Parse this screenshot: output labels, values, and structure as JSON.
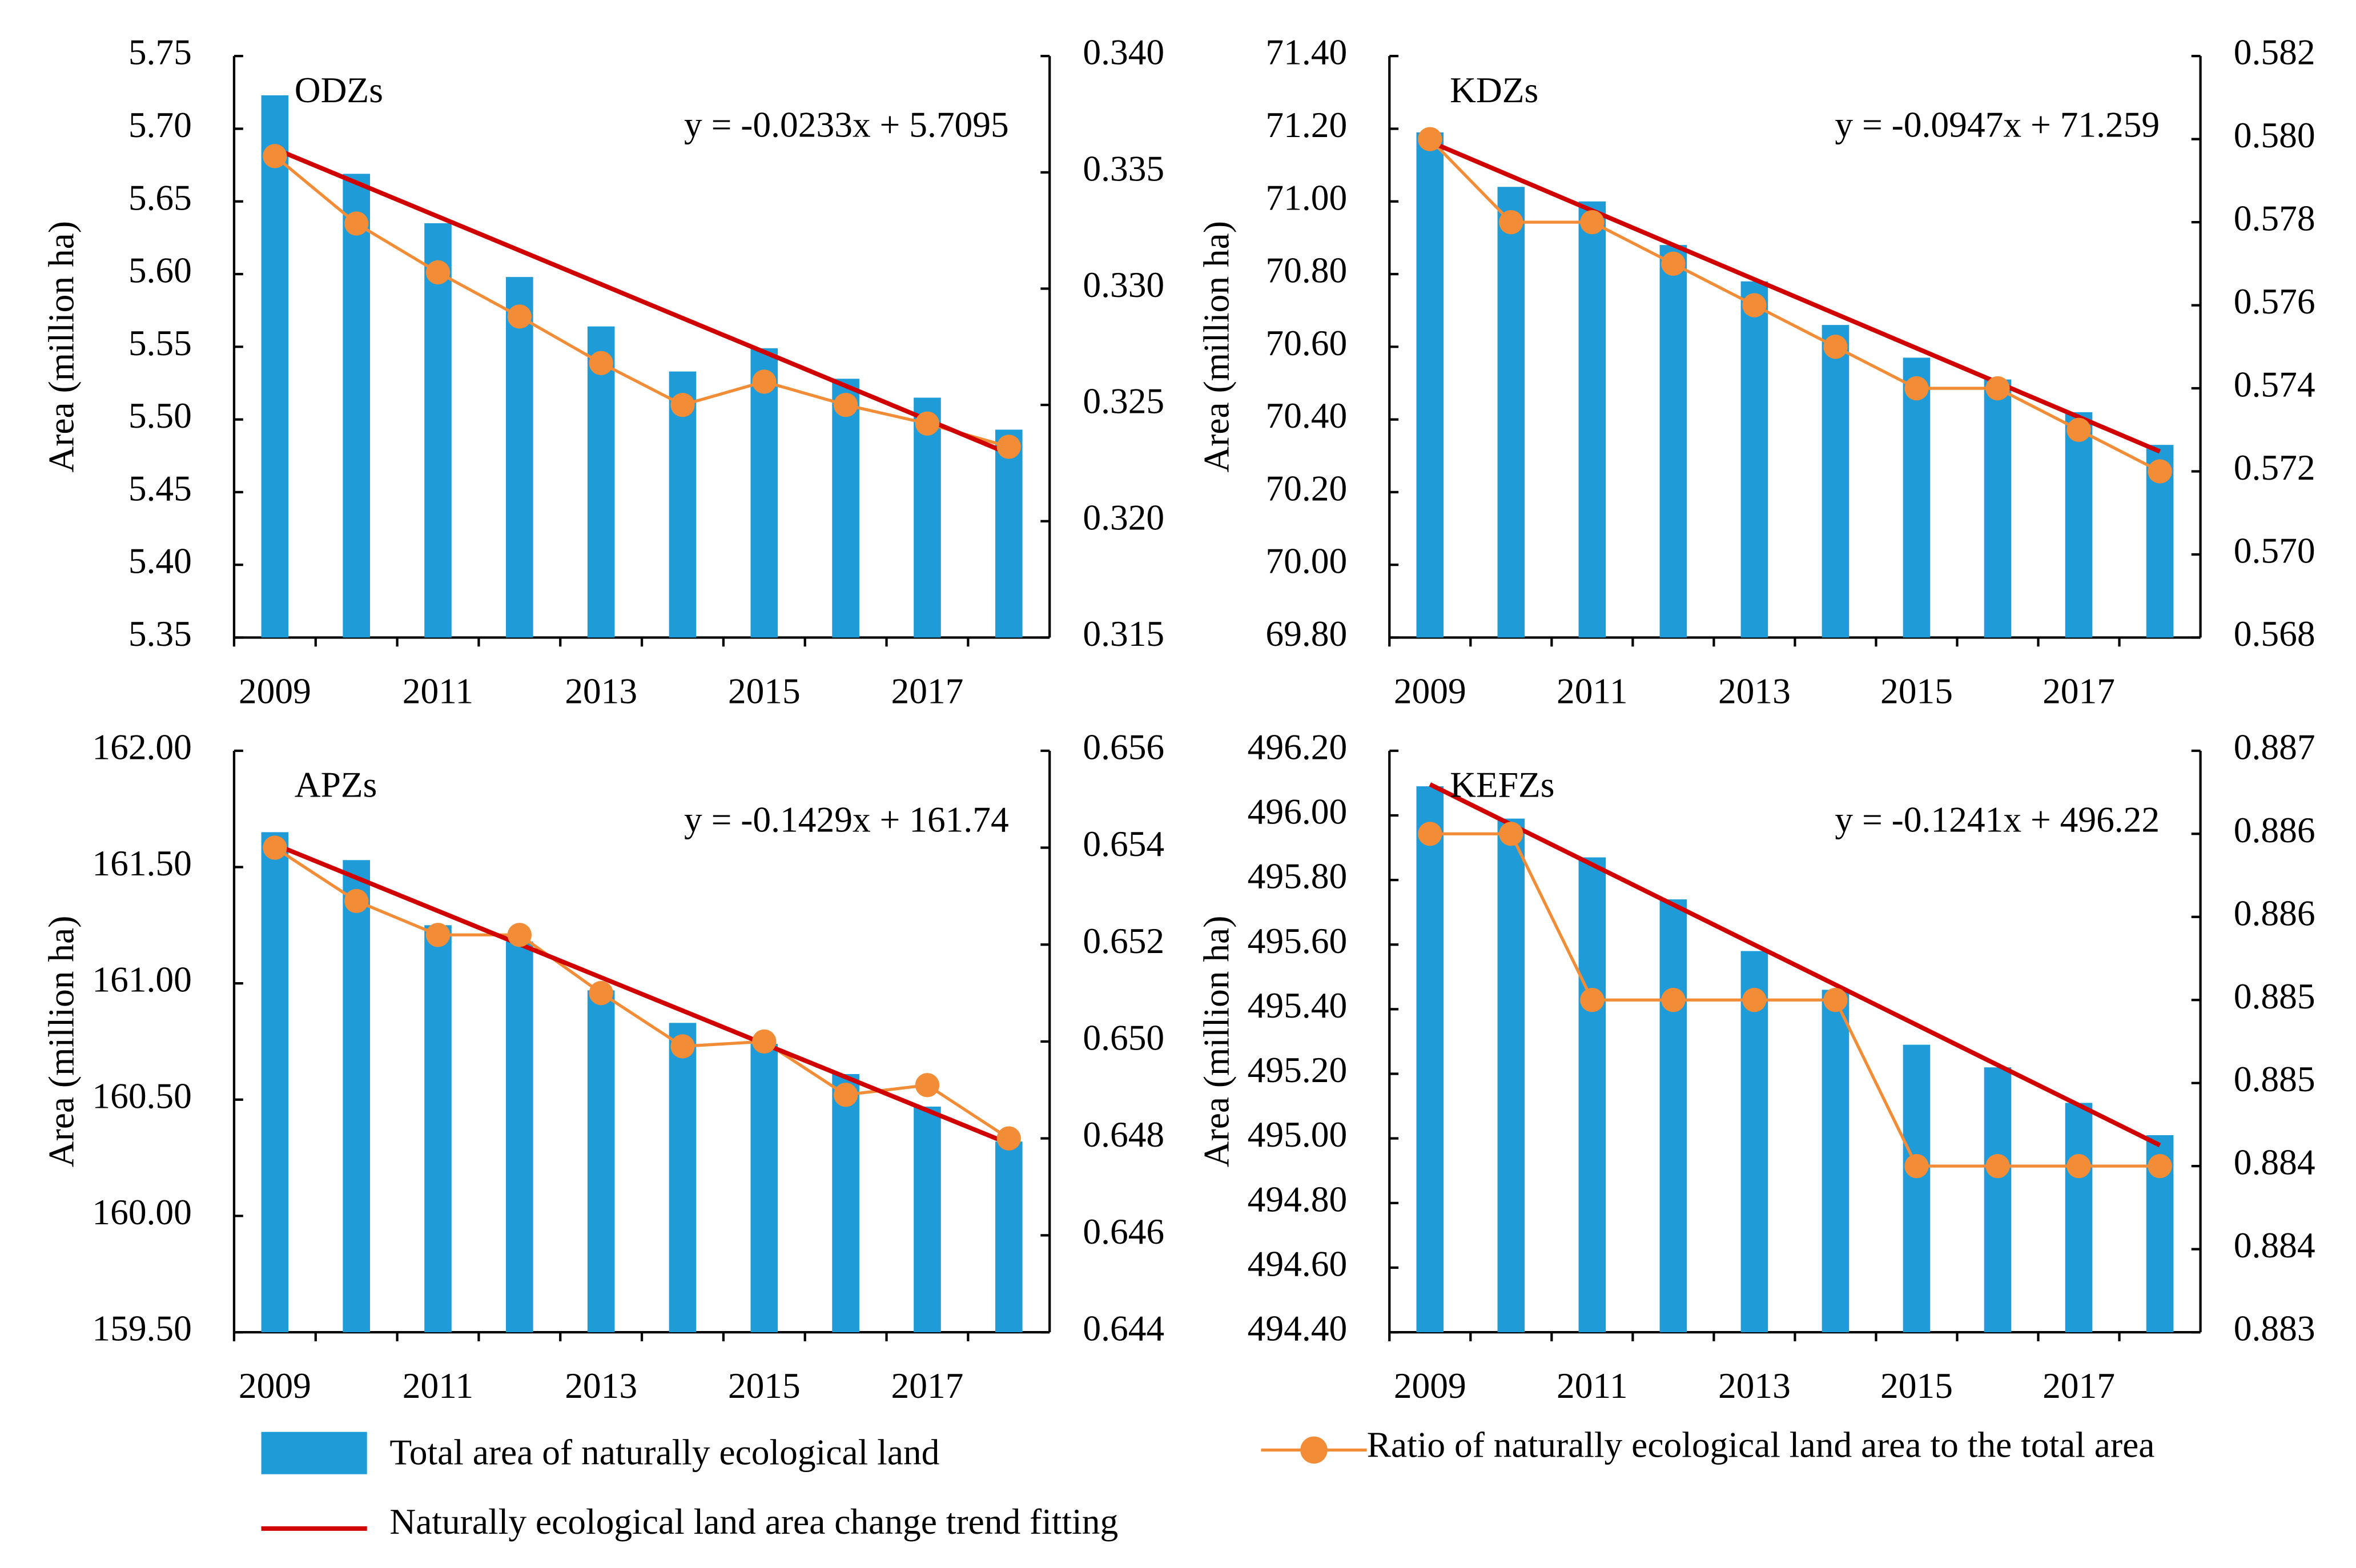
{
  "chart_data": [
    {
      "type": "bar-line",
      "title": "ODZs",
      "annotation": "y = -0.0233x + 5.7095",
      "y_label": "Area (million ha)",
      "categories": [
        "2009",
        null,
        "2011",
        null,
        "2013",
        null,
        "2015",
        null,
        "2017",
        null
      ],
      "bars": {
        "color": "#1f9bd7",
        "values": [
          5.723,
          5.669,
          5.635,
          5.598,
          5.564,
          5.533,
          5.549,
          5.528,
          5.515,
          5.493
        ]
      },
      "ratio": {
        "color": "#f28c36",
        "axis": "y2",
        "values": [
          0.3357,
          0.3328,
          0.3307,
          0.3288,
          0.3268,
          0.325,
          0.326,
          0.325,
          0.3242,
          0.3232
        ]
      },
      "trend": {
        "color": "#d00000",
        "values": [
          5.6862,
          5.6629,
          5.6396,
          5.6163,
          5.593,
          5.5697,
          5.5464,
          5.5231,
          5.4998,
          5.4765
        ]
      },
      "ylim": [
        5.35,
        5.75
      ],
      "yticks": [
        5.35,
        {
          "value": 5.4,
          "label": "5.40"
        },
        5.45,
        {
          "value": 5.5,
          "label": "5.50"
        },
        5.55,
        {
          "value": 5.6,
          "label": "5.60"
        },
        5.65,
        {
          "value": 5.7,
          "label": "5.70"
        },
        5.75
      ],
      "y2lim": [
        0.315,
        0.34
      ],
      "y2ticks": [
        0.315,
        {
          "value": 0.32,
          "label": "0.320"
        },
        0.325,
        {
          "value": 0.33,
          "label": "0.330"
        },
        0.335,
        {
          "value": 0.34,
          "label": "0.340"
        }
      ]
    },
    {
      "type": "bar-line",
      "title": "KDZs",
      "annotation": "y = -0.0947x + 71.259",
      "y_label": "Area (million ha)",
      "categories": [
        "2009",
        null,
        "2011",
        null,
        "2013",
        null,
        "2015",
        null,
        "2017",
        null
      ],
      "bars": {
        "color": "#1f9bd7",
        "values": [
          71.19,
          71.04,
          71.0,
          70.88,
          70.78,
          70.66,
          70.57,
          70.51,
          70.42,
          70.33
        ]
      },
      "ratio": {
        "color": "#f28c36",
        "axis": "y2",
        "values": [
          0.58,
          0.578,
          0.578,
          0.577,
          0.576,
          0.575,
          0.574,
          0.574,
          0.573,
          0.572
        ]
      },
      "trend": {
        "color": "#d00000",
        "values": [
          71.1643,
          71.0696,
          70.9749,
          70.8802,
          70.7855,
          70.6908,
          70.5961,
          70.5014,
          70.4067,
          70.312
        ]
      },
      "ylim": [
        69.8,
        71.4
      ],
      "yticks": [
        {
          "value": 69.8,
          "label": "69.80"
        },
        {
          "value": 70,
          "label": "70.00"
        },
        {
          "value": 70.2,
          "label": "70.20"
        },
        {
          "value": 70.4,
          "label": "70.40"
        },
        {
          "value": 70.6,
          "label": "70.60"
        },
        {
          "value": 70.8,
          "label": "70.80"
        },
        {
          "value": 71,
          "label": "71.00"
        },
        {
          "value": 71.2,
          "label": "71.20"
        },
        {
          "value": 71.4,
          "label": "71.40"
        }
      ],
      "y2lim": [
        0.568,
        0.582
      ],
      "y2ticks": [
        0.568,
        {
          "value": 0.57,
          "label": "0.570"
        },
        0.572,
        0.574,
        0.576,
        0.578,
        {
          "value": 0.58,
          "label": "0.580"
        },
        0.582
      ]
    },
    {
      "type": "bar-line",
      "title": "APZs",
      "annotation": "y = -0.1429x + 161.74",
      "y_label": "Area (million ha)",
      "categories": [
        "2009",
        null,
        "2011",
        null,
        "2013",
        null,
        "2015",
        null,
        "2017",
        null
      ],
      "bars": {
        "color": "#1f9bd7",
        "values": [
          161.65,
          161.53,
          161.25,
          161.18,
          160.97,
          160.83,
          160.74,
          160.61,
          160.47,
          160.32
        ]
      },
      "ratio": {
        "color": "#f28c36",
        "axis": "y2",
        "values": [
          0.654,
          0.6529,
          0.6522,
          0.6522,
          0.651,
          0.6499,
          0.65,
          0.6489,
          0.6491,
          0.648
        ]
      },
      "trend": {
        "color": "#d00000",
        "values": [
          161.5971,
          161.4542,
          161.3113,
          161.1684,
          161.0255,
          160.8826,
          160.7397,
          160.5968,
          160.4539,
          160.311
        ]
      },
      "ylim": [
        159.5,
        162
      ],
      "yticks": [
        {
          "value": 159.5,
          "label": "159.50"
        },
        {
          "value": 160,
          "label": "160.00"
        },
        {
          "value": 160.5,
          "label": "160.50"
        },
        {
          "value": 161,
          "label": "161.00"
        },
        {
          "value": 161.5,
          "label": "161.50"
        },
        {
          "value": 162,
          "label": "162.00"
        }
      ],
      "y2lim": [
        0.644,
        0.656
      ],
      "y2ticks": [
        0.644,
        0.646,
        0.648,
        {
          "value": 0.65,
          "label": "0.650"
        },
        0.652,
        0.654,
        0.656
      ]
    },
    {
      "type": "bar-line",
      "title": "KEFZs",
      "annotation": "y = -0.1241x + 496.22",
      "y_label": "Area (million ha)",
      "categories": [
        "2009",
        null,
        "2011",
        null,
        "2013",
        null,
        "2015",
        null,
        "2017",
        null
      ],
      "bars": {
        "color": "#1f9bd7",
        "values": [
          496.09,
          495.99,
          495.87,
          495.74,
          495.58,
          495.46,
          495.29,
          495.22,
          495.11,
          495.01
        ]
      },
      "ratio": {
        "color": "#f28c36",
        "axis": "y2",
        "values": [
          0.886,
          0.886,
          0.885,
          0.885,
          0.885,
          0.885,
          0.884,
          0.884,
          0.884,
          0.884
        ]
      },
      "trend": {
        "color": "#d00000",
        "values": [
          496.0959,
          495.9718,
          495.8477,
          495.7236,
          495.5995,
          495.4754,
          495.3513,
          495.2272,
          495.1031,
          494.979
        ]
      },
      "ylim": [
        494.4,
        496.2
      ],
      "yticks": [
        {
          "value": 494.4,
          "label": "494.40"
        },
        {
          "value": 494.6,
          "label": "494.60"
        },
        {
          "value": 494.8,
          "label": "494.80"
        },
        {
          "value": 495,
          "label": "495.00"
        },
        {
          "value": 495.2,
          "label": "495.20"
        },
        {
          "value": 495.4,
          "label": "495.40"
        },
        {
          "value": 495.6,
          "label": "495.60"
        },
        {
          "value": 495.8,
          "label": "495.80"
        },
        {
          "value": 496,
          "label": "496.00"
        },
        {
          "value": 496.2,
          "label": "496.20"
        }
      ],
      "y2lim": [
        0.883,
        0.8865
      ],
      "y2ticks": [
        0.883,
        {
          "value": 0.8835,
          "label": "0.884"
        },
        0.884,
        {
          "value": 0.8845,
          "label": "0.885"
        },
        0.885,
        {
          "value": 0.8855,
          "label": "0.886"
        },
        0.886,
        {
          "value": 0.8865,
          "label": "0.887"
        }
      ]
    }
  ],
  "legend": {
    "bars": "Total area of naturally ecological land",
    "ratio": "Ratio of naturally ecological land area to the total area",
    "trend": "Naturally ecological land area change trend fitting"
  }
}
